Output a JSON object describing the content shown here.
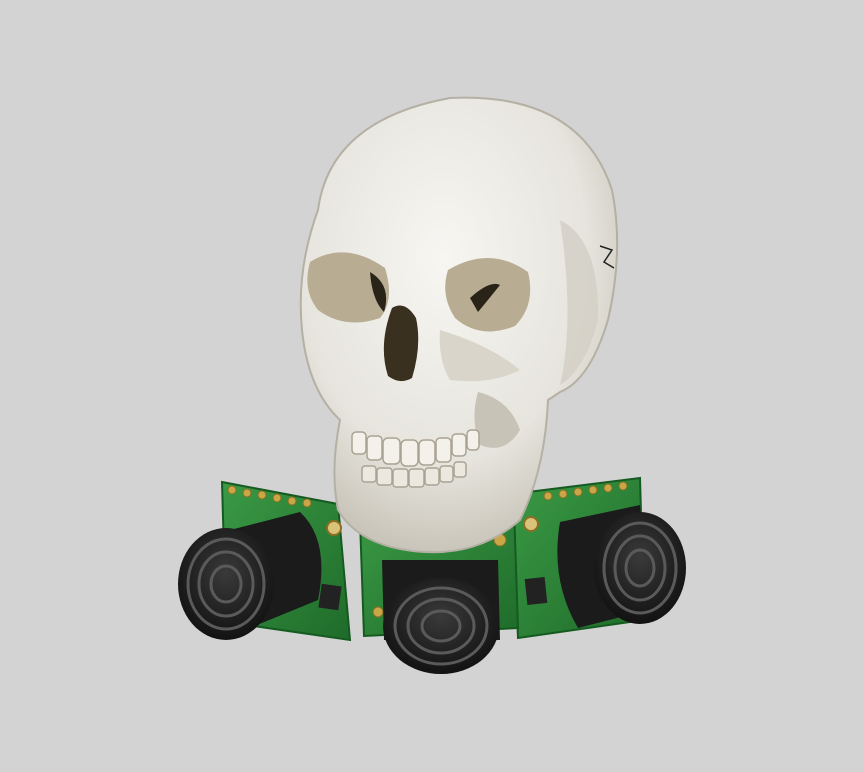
{
  "scene": {
    "background_color": "#d3d3d3",
    "subject": "skull-icon",
    "sensors": [
      "ultrasonic-sensor-left",
      "ultrasonic-sensor-center",
      "ultrasonic-sensor-right"
    ],
    "colors": {
      "bone": "#ecebe6",
      "bone_shadow": "#b9b5aa",
      "pcb_green": "#2e8a3a",
      "pcb_dark": "#1f6b2a",
      "sensor_black": "#1a1a1a",
      "pad_gold": "#c9a647"
    }
  }
}
